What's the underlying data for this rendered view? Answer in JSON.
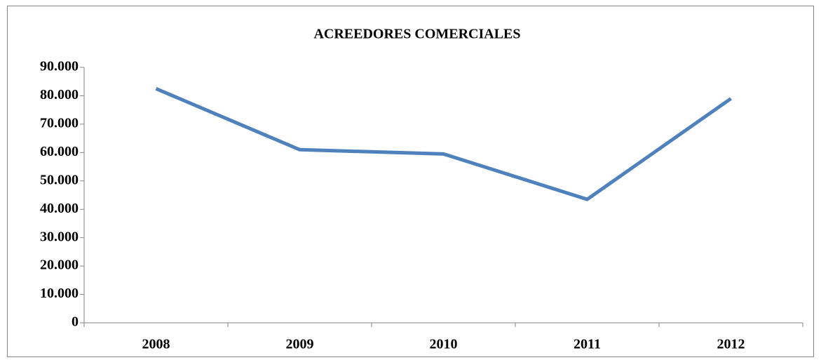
{
  "chart_data": {
    "type": "line",
    "title": "ACREEDORES COMERCIALES",
    "categories": [
      "2008",
      "2009",
      "2010",
      "2011",
      "2012"
    ],
    "series": [
      {
        "name": "Acreedores comerciales",
        "color": "#4f81bd",
        "values": [
          82500,
          61000,
          59500,
          43500,
          79000
        ]
      }
    ],
    "ylim": [
      0,
      90000
    ],
    "yticks": [
      0,
      {
        "value": 10000,
        "label": "10.000"
      },
      {
        "value": 20000,
        "label": "20.000"
      },
      {
        "value": 30000,
        "label": "30.000"
      },
      {
        "value": 40000,
        "label": "40.000"
      },
      {
        "value": 50000,
        "label": "50.000"
      },
      {
        "value": 60000,
        "label": "60.000"
      },
      {
        "value": 70000,
        "label": "70.000"
      },
      {
        "value": 80000,
        "label": "80.000"
      },
      {
        "value": 90000,
        "label": "90.000"
      }
    ],
    "grid": false
  }
}
